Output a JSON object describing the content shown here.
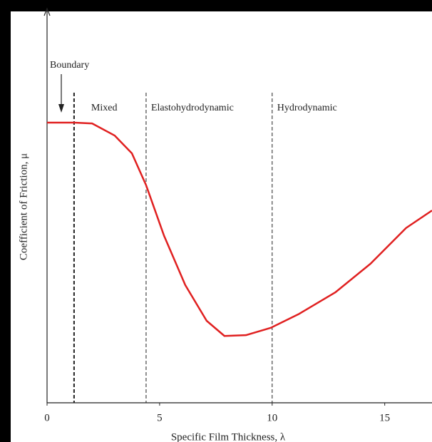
{
  "chart_data": {
    "type": "line",
    "x_label": "Specific Film Thickness, λ",
    "y_label": "Coefficient of Friction, μ",
    "x": [
      0,
      1.2,
      2.0,
      3.0,
      3.77,
      4.4,
      5.19,
      6.14,
      7.09,
      7.88,
      8.83,
      9.94,
      11.2,
      12.8,
      14.37,
      15.95,
      17.1
    ],
    "series": [
      {
        "color": "#e02020",
        "values": [
          0.721,
          0.721,
          0.719,
          0.688,
          0.642,
          0.56,
          0.431,
          0.303,
          0.211,
          0.172,
          0.174,
          0.193,
          0.229,
          0.284,
          0.358,
          0.45,
          0.495
        ]
      }
    ],
    "xlim": [
      0,
      17.1
    ],
    "ylim": [
      0,
      1
    ],
    "xticks": [
      0,
      5,
      10,
      15
    ],
    "dividers": [
      1.2,
      4.4,
      10.0
    ],
    "regions": [
      "Mixed",
      "Elastohydrodynamic",
      "Hydrodynamic"
    ],
    "annotation": "Boundary"
  }
}
